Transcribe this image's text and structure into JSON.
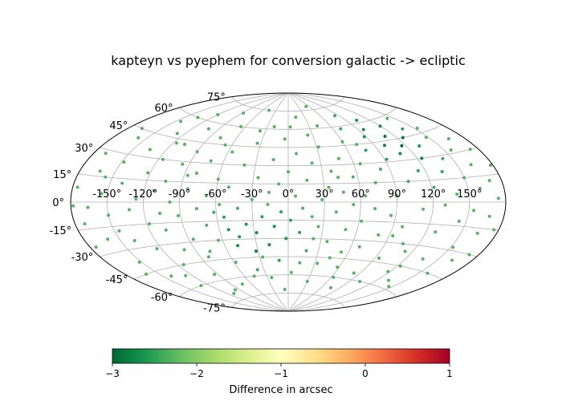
{
  "chart_data": {
    "type": "scatter",
    "projection": "aitoff",
    "title": "kapteyn vs pyephem for conversion galactic -> ecliptic",
    "x_tick_labels": [
      "-150°",
      "-120°",
      "-90°",
      "-60°",
      "-30°",
      "0°",
      "30°",
      "60°",
      "90°",
      "120°",
      "150°"
    ],
    "x_tick_values": [
      -150,
      -120,
      -90,
      -60,
      -30,
      0,
      30,
      60,
      90,
      120,
      150
    ],
    "y_tick_labels": [
      "-75°",
      "-60°",
      "-45°",
      "-30°",
      "-15°",
      "0°",
      "15°",
      "30°",
      "45°",
      "60°",
      "75°"
    ],
    "y_tick_values": [
      -75,
      -60,
      -45,
      -30,
      -15,
      0,
      15,
      30,
      45,
      60,
      75
    ],
    "grid": true,
    "xlim": [
      -180,
      180
    ],
    "ylim": [
      -90,
      90
    ],
    "colorbar": {
      "label": "Difference in arcsec",
      "range": [
        -3,
        1
      ],
      "tick_labels": [
        "−3",
        "−2",
        "−1",
        "0",
        "1"
      ],
      "tick_values": [
        -3,
        -2,
        -1,
        0,
        1
      ],
      "colormap": "RdYlGn_r",
      "stops": [
        [
          0.0,
          "#006837"
        ],
        [
          0.1,
          "#1a9850"
        ],
        [
          0.2,
          "#66bd63"
        ],
        [
          0.3,
          "#a6d96a"
        ],
        [
          0.4,
          "#d9ef8b"
        ],
        [
          0.5,
          "#ffffbf"
        ],
        [
          0.6,
          "#fee08b"
        ],
        [
          0.7,
          "#fdae61"
        ],
        [
          0.8,
          "#f46d43"
        ],
        [
          0.9,
          "#d73027"
        ],
        [
          1.0,
          "#a50026"
        ]
      ]
    },
    "points": [
      [
        -176,
        8,
        -2.3
      ],
      [
        -172,
        -12,
        -2.3
      ],
      [
        -170,
        28,
        -2.3
      ],
      [
        -166,
        -3,
        -2.3
      ],
      [
        -163,
        18,
        -2.3
      ],
      [
        -160,
        -22,
        -2.3
      ],
      [
        -158,
        40,
        -2.3
      ],
      [
        -155,
        5,
        -2.3
      ],
      [
        -152,
        -38,
        -2.3
      ],
      [
        -150,
        -8,
        -2.3
      ],
      [
        -148,
        25,
        -2.3
      ],
      [
        -145,
        55,
        -2.3
      ],
      [
        -142,
        -50,
        -2.3
      ],
      [
        -140,
        12,
        -2.3
      ],
      [
        -138,
        -25,
        -2.3
      ],
      [
        -135,
        35,
        -2.3
      ],
      [
        -132,
        -5,
        -2.3
      ],
      [
        -130,
        -60,
        -2.3
      ],
      [
        -128,
        48,
        -2.3
      ],
      [
        -126,
        2,
        -2.3
      ],
      [
        -124,
        -32,
        -2.3
      ],
      [
        -122,
        20,
        -2.3
      ],
      [
        -120,
        65,
        -2.3
      ],
      [
        -118,
        -15,
        -2.3
      ],
      [
        -116,
        30,
        -2.3
      ],
      [
        -114,
        -45,
        -2.3
      ],
      [
        -112,
        8,
        -2.3
      ],
      [
        -110,
        -70,
        -2.3
      ],
      [
        -108,
        42,
        -2.3
      ],
      [
        -106,
        -20,
        -2.3
      ],
      [
        -104,
        15,
        -2.3
      ],
      [
        -102,
        55,
        -2.3
      ],
      [
        -100,
        -35,
        -2.3
      ],
      [
        -98,
        0,
        -2.3
      ],
      [
        -96,
        28,
        -2.3
      ],
      [
        -94,
        -55,
        -2.3
      ],
      [
        -92,
        -10,
        -2.3
      ],
      [
        -90,
        38,
        -2.3
      ],
      [
        -88,
        70,
        -2.3
      ],
      [
        -86,
        -28,
        -2.3
      ],
      [
        -84,
        10,
        -2.3
      ],
      [
        -82,
        -42,
        -2.3
      ],
      [
        -80,
        22,
        -2.3
      ],
      [
        -78,
        50,
        -2.3
      ],
      [
        -76,
        -5,
        -2.3
      ],
      [
        -74,
        -65,
        -2.3
      ],
      [
        -72,
        32,
        -2.3
      ],
      [
        -70,
        -18,
        -2.3
      ],
      [
        -68,
        5,
        -2.3
      ],
      [
        -66,
        60,
        -2.3
      ],
      [
        -64,
        -30,
        -2.3
      ],
      [
        -62,
        -8,
        -2.4
      ],
      [
        -60,
        18,
        -2.3
      ],
      [
        -58,
        -48,
        -2.3
      ],
      [
        -56,
        40,
        -2.3
      ],
      [
        -54,
        -12,
        -2.5
      ],
      [
        -52,
        -22,
        -2.6
      ],
      [
        -50,
        12,
        -2.3
      ],
      [
        -48,
        -35,
        -2.7
      ],
      [
        -46,
        75,
        -2.3
      ],
      [
        -44,
        -28,
        -2.6
      ],
      [
        -42,
        -5,
        -2.4
      ],
      [
        -40,
        30,
        -2.3
      ],
      [
        -38,
        -55,
        -2.4
      ],
      [
        -36,
        -18,
        -2.6
      ],
      [
        -34,
        48,
        -2.3
      ],
      [
        -32,
        -40,
        -2.8
      ],
      [
        -30,
        2,
        -2.3
      ],
      [
        -28,
        -25,
        -2.7
      ],
      [
        -26,
        20,
        -2.3
      ],
      [
        -24,
        -62,
        -2.3
      ],
      [
        -22,
        -12,
        -2.5
      ],
      [
        -20,
        62,
        -2.3
      ],
      [
        -18,
        -35,
        -2.7
      ],
      [
        -16,
        8,
        -2.3
      ],
      [
        -14,
        35,
        -2.3
      ],
      [
        -12,
        -20,
        -2.6
      ],
      [
        -10,
        -48,
        -2.5
      ],
      [
        -8,
        15,
        -2.3
      ],
      [
        -6,
        -8,
        -2.5
      ],
      [
        -4,
        52,
        -2.3
      ],
      [
        -2,
        -30,
        -2.6
      ],
      [
        0,
        25,
        -2.3
      ],
      [
        2,
        -15,
        -2.5
      ],
      [
        4,
        -58,
        -2.3
      ],
      [
        6,
        5,
        -2.3
      ],
      [
        8,
        40,
        -2.3
      ],
      [
        10,
        -25,
        -2.5
      ],
      [
        12,
        -5,
        -2.3
      ],
      [
        14,
        70,
        -2.3
      ],
      [
        16,
        18,
        -2.3
      ],
      [
        18,
        -40,
        -2.4
      ],
      [
        20,
        -12,
        -2.3
      ],
      [
        22,
        32,
        -2.3
      ],
      [
        24,
        55,
        -2.3
      ],
      [
        26,
        -20,
        -2.3
      ],
      [
        28,
        2,
        -2.3
      ],
      [
        30,
        -65,
        -2.3
      ],
      [
        32,
        45,
        -2.3
      ],
      [
        34,
        12,
        -2.3
      ],
      [
        36,
        -32,
        -2.3
      ],
      [
        38,
        25,
        -2.3
      ],
      [
        40,
        -8,
        -2.3
      ],
      [
        42,
        62,
        -2.3
      ],
      [
        44,
        -45,
        -2.3
      ],
      [
        46,
        8,
        -2.3
      ],
      [
        48,
        35,
        -2.3
      ],
      [
        50,
        -22,
        -2.3
      ],
      [
        52,
        78,
        -2.3
      ],
      [
        54,
        -2,
        -2.3
      ],
      [
        56,
        20,
        -2.3
      ],
      [
        58,
        -52,
        -2.3
      ],
      [
        60,
        48,
        -2.3
      ],
      [
        62,
        -15,
        -2.3
      ],
      [
        64,
        5,
        -2.3
      ],
      [
        66,
        30,
        -2.3
      ],
      [
        68,
        -35,
        -2.3
      ],
      [
        70,
        58,
        -2.4
      ],
      [
        72,
        -5,
        -2.3
      ],
      [
        74,
        15,
        -2.3
      ],
      [
        76,
        -68,
        -2.3
      ],
      [
        78,
        40,
        -2.5
      ],
      [
        80,
        -25,
        -2.3
      ],
      [
        82,
        25,
        -2.4
      ],
      [
        84,
        68,
        -2.4
      ],
      [
        86,
        -10,
        -2.3
      ],
      [
        88,
        50,
        -2.6
      ],
      [
        90,
        5,
        -2.3
      ],
      [
        92,
        32,
        -2.5
      ],
      [
        94,
        -42,
        -2.3
      ],
      [
        96,
        55,
        -2.7
      ],
      [
        98,
        -18,
        -2.3
      ],
      [
        100,
        42,
        -2.8
      ],
      [
        102,
        15,
        -2.4
      ],
      [
        104,
        62,
        -2.6
      ],
      [
        106,
        -30,
        -2.3
      ],
      [
        108,
        35,
        -2.7
      ],
      [
        110,
        48,
        -2.9
      ],
      [
        112,
        -5,
        -2.3
      ],
      [
        114,
        22,
        -2.5
      ],
      [
        116,
        40,
        -3.0
      ],
      [
        118,
        -50,
        -2.3
      ],
      [
        120,
        55,
        -2.7
      ],
      [
        122,
        10,
        -2.4
      ],
      [
        124,
        30,
        -2.8
      ],
      [
        126,
        45,
        -2.9
      ],
      [
        128,
        -20,
        -2.3
      ],
      [
        130,
        -2,
        -2.3
      ],
      [
        132,
        38,
        -2.6
      ],
      [
        134,
        20,
        -2.5
      ],
      [
        136,
        -38,
        -2.3
      ],
      [
        138,
        50,
        -2.5
      ],
      [
        140,
        5,
        -2.3
      ],
      [
        142,
        28,
        -2.4
      ],
      [
        144,
        -12,
        -2.3
      ],
      [
        146,
        -58,
        -2.3
      ],
      [
        148,
        42,
        -2.3
      ],
      [
        150,
        15,
        -2.3
      ],
      [
        152,
        -28,
        -2.3
      ],
      [
        154,
        -5,
        -2.3
      ],
      [
        156,
        32,
        -2.3
      ],
      [
        158,
        -45,
        -2.3
      ],
      [
        160,
        8,
        -2.3
      ],
      [
        162,
        22,
        -2.3
      ],
      [
        164,
        -18,
        -2.3
      ],
      [
        166,
        38,
        -2.3
      ],
      [
        168,
        -8,
        -2.3
      ],
      [
        170,
        12,
        -2.3
      ],
      [
        172,
        -30,
        -2.3
      ],
      [
        174,
        2,
        -2.3
      ],
      [
        176,
        -15,
        -2.3
      ],
      [
        178,
        20,
        -2.3
      ],
      [
        -175,
        -25,
        -2.3
      ],
      [
        -168,
        45,
        -2.3
      ],
      [
        -162,
        -45,
        -2.3
      ],
      [
        -156,
        15,
        -2.3
      ],
      [
        -146,
        -18,
        -2.3
      ],
      [
        -136,
        60,
        -2.3
      ],
      [
        -127,
        -52,
        -2.3
      ],
      [
        -117,
        42,
        -2.3
      ],
      [
        -107,
        -8,
        -2.3
      ],
      [
        -97,
        -68,
        -2.3
      ],
      [
        -87,
        20,
        -2.3
      ],
      [
        -77,
        -38,
        -2.3
      ],
      [
        -67,
        45,
        -2.3
      ],
      [
        -57,
        -2,
        -2.3
      ],
      [
        -47,
        -60,
        -2.3
      ],
      [
        -37,
        58,
        -2.3
      ],
      [
        -27,
        -45,
        -2.3
      ],
      [
        -17,
        -2,
        -2.3
      ],
      [
        -7,
        -72,
        -2.3
      ],
      [
        3,
        62,
        -2.3
      ],
      [
        13,
        -50,
        -2.3
      ],
      [
        23,
        -30,
        -2.3
      ],
      [
        33,
        -50,
        -2.3
      ],
      [
        43,
        20,
        -2.3
      ],
      [
        53,
        -40,
        -2.3
      ],
      [
        63,
        -60,
        -2.3
      ],
      [
        73,
        45,
        -2.3
      ],
      [
        83,
        -55,
        -2.3
      ],
      [
        93,
        -25,
        -2.3
      ],
      [
        103,
        -60,
        -2.3
      ],
      [
        113,
        -35,
        -2.3
      ],
      [
        123,
        -45,
        -2.3
      ],
      [
        133,
        -55,
        -2.3
      ],
      [
        143,
        58,
        -2.3
      ],
      [
        153,
        48,
        -2.3
      ],
      [
        163,
        -35,
        -2.3
      ],
      [
        173,
        30,
        -2.3
      ],
      [
        -178,
        -2,
        -2.3
      ]
    ]
  }
}
